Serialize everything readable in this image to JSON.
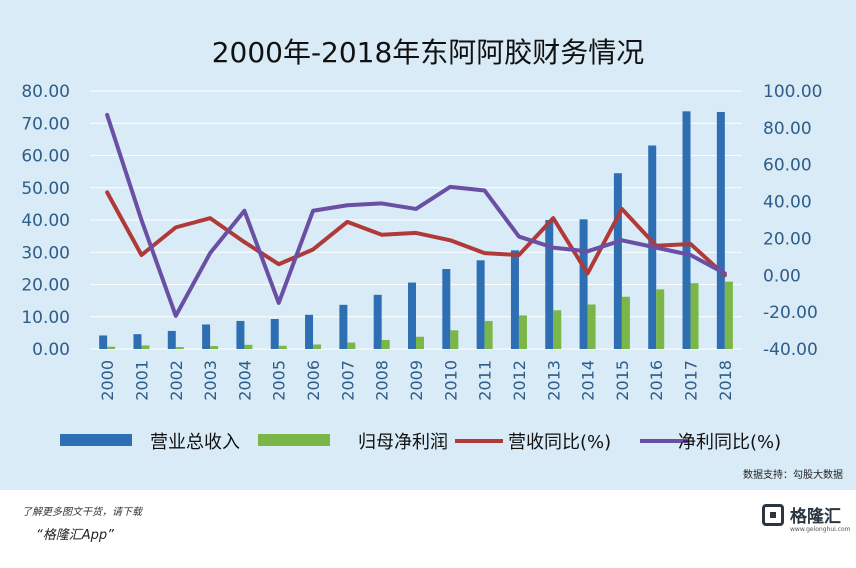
{
  "chart_data": {
    "type": "bar",
    "title": "2000年-2018年东阿阿胶财务情况",
    "categories": [
      "2000",
      "2001",
      "2002",
      "2003",
      "2004",
      "2005",
      "2006",
      "2007",
      "2008",
      "2009",
      "2010",
      "2011",
      "2012",
      "2013",
      "2014",
      "2015",
      "2016",
      "2017",
      "2018"
    ],
    "y_left": {
      "ticks": [
        "80.00",
        "70.00",
        "60.00",
        "50.00",
        "40.00",
        "30.00",
        "20.00",
        "10.00",
        "0.00"
      ],
      "ylim": [
        0,
        80
      ]
    },
    "y_right": {
      "ticks": [
        "100.00",
        "80.00",
        "60.00",
        "40.00",
        "20.00",
        "0.00",
        "-20.00",
        "-40.00"
      ],
      "ylim": [
        -40,
        100
      ]
    },
    "grid": true,
    "legend_position": "bottom",
    "series": [
      {
        "name": "营业总收入",
        "kind": "bar",
        "axis": "left",
        "color": "#2e6fb4",
        "values": [
          4.2,
          4.6,
          5.6,
          7.6,
          8.7,
          9.3,
          10.6,
          13.7,
          16.8,
          20.6,
          24.8,
          27.5,
          30.6,
          40.0,
          40.2,
          54.5,
          63.1,
          73.7,
          73.5
        ]
      },
      {
        "name": "归母净利润",
        "kind": "bar",
        "axis": "left",
        "color": "#7ab648",
        "values": [
          0.7,
          1.1,
          0.6,
          0.9,
          1.3,
          1.0,
          1.4,
          2.0,
          2.8,
          3.8,
          5.8,
          8.7,
          10.4,
          12.0,
          13.8,
          16.2,
          18.5,
          20.4,
          20.9
        ]
      },
      {
        "name": "营收同比(%)",
        "kind": "line",
        "axis": "right",
        "color": "#b03a3a",
        "values": [
          45,
          11,
          26,
          31,
          18,
          6,
          14,
          29,
          22,
          23,
          19,
          12,
          11,
          31,
          1,
          36,
          16,
          17,
          0
        ]
      },
      {
        "name": "净利同比(%)",
        "kind": "line",
        "axis": "right",
        "color": "#6a4fa2",
        "values": [
          87,
          30,
          -22,
          12,
          35,
          -15,
          35,
          38,
          39,
          36,
          48,
          46,
          21,
          15,
          13,
          19,
          15,
          11,
          1
        ]
      }
    ],
    "annotation": "数据支持：勾股大数据"
  },
  "footer": {
    "note": "了解更多图文干货，请下载",
    "app": "“格隆汇App”",
    "brand": "格隆汇",
    "brand_url": "www.gelonghui.com",
    "watermark": "格隆汇"
  }
}
